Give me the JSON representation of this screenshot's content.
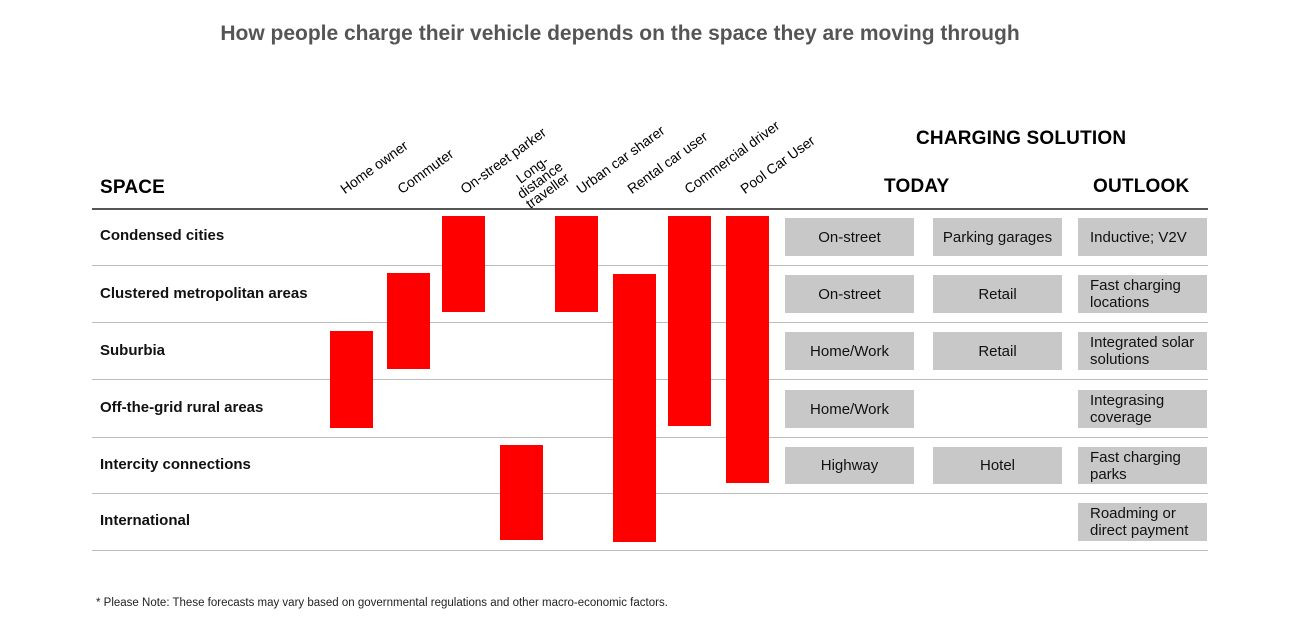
{
  "title": "How people charge their vehicle depends on the space they are moving through",
  "headers": {
    "space": "SPACE",
    "charging_solution": "CHARGING SOLUTION",
    "today": "TODAY",
    "outlook": "OUTLOOK"
  },
  "columns": [
    {
      "label": "Home owner",
      "spans": [
        "Suburbia",
        "Off-the-grid rural areas"
      ]
    },
    {
      "label": "Commuter",
      "spans": [
        "Clustered metropolitan areas",
        "Suburbia"
      ]
    },
    {
      "label": "On-street parker",
      "spans": [
        "Condensed cities",
        "Clustered metropolitan areas"
      ]
    },
    {
      "label": "Long-distance traveller",
      "spans": [
        "Intercity connections",
        "International"
      ]
    },
    {
      "label": "Urban car sharer",
      "spans": [
        "Condensed cities",
        "Clustered metropolitan areas"
      ]
    },
    {
      "label": "Rental car user",
      "spans": [
        "Clustered metropolitan areas",
        "Suburbia",
        "Off-the-grid rural areas",
        "Intercity connections",
        "International"
      ]
    },
    {
      "label": "Commercial driver",
      "spans": [
        "Condensed cities",
        "Clustered metropolitan areas",
        "Suburbia",
        "Off-the-grid rural areas"
      ]
    },
    {
      "label": "Pool Car User",
      "spans": [
        "Condensed cities",
        "Clustered metropolitan areas",
        "Suburbia",
        "Off-the-grid rural areas",
        "Intercity connections"
      ]
    }
  ],
  "rows": [
    {
      "space": "Condensed cities",
      "today1": "On-street",
      "today2": "Parking garages",
      "outlook": "Inductive; V2V"
    },
    {
      "space": "Clustered metropolitan areas",
      "today1": "On-street",
      "today2": "Retail",
      "outlook": "Fast charging locations"
    },
    {
      "space": "Suburbia",
      "today1": "Home/Work",
      "today2": "Retail",
      "outlook": "Integrated solar solutions"
    },
    {
      "space": "Off-the-grid rural areas",
      "today1": "Home/Work",
      "today2": "",
      "outlook": "Integrasing coverage"
    },
    {
      "space": "Intercity connections",
      "today1": "Highway",
      "today2": "Hotel",
      "outlook": "Fast charging parks"
    },
    {
      "space": "International",
      "today1": "",
      "today2": "",
      "outlook": "Roadming or direct payment"
    }
  ],
  "colors": {
    "bar": "#ff0000",
    "box": "#c8c8c8"
  },
  "note": "* Please Note: These forecasts may vary based on governmental regulations and other macro-economic factors."
}
